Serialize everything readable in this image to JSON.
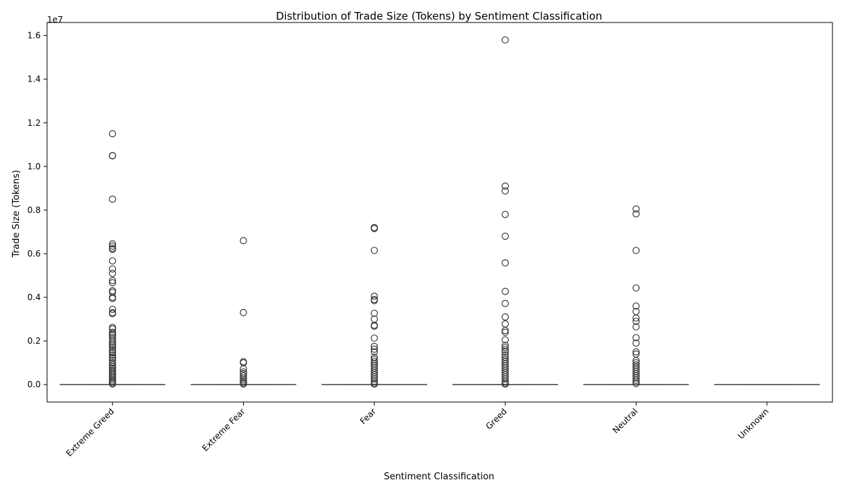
{
  "chart_data": {
    "type": "box",
    "title": "Distribution of Trade Size (Tokens) by Sentiment Classification",
    "xlabel": "Sentiment Classification",
    "ylabel": "Trade Size (Tokens)",
    "y_offset_label": "1e7",
    "ylim": [
      -0.08,
      1.66
    ],
    "y_ticks": [
      0.0,
      0.2,
      0.4,
      0.6,
      0.8,
      1.0,
      1.2,
      1.4,
      1.6
    ],
    "y_tick_labels": [
      "0.0",
      "0.2",
      "0.4",
      "0.6",
      "0.8",
      "1.0",
      "1.2",
      "1.4",
      "1.6"
    ],
    "grid": false,
    "categories": [
      "Extreme Greed",
      "Extreme Fear",
      "Fear",
      "Greed",
      "Neutral",
      "Unknown"
    ],
    "box_color": "#4a78a8",
    "boxes": [
      {
        "name": "Extreme Greed",
        "q1": 0.0,
        "median": 0.0,
        "q3": 0.0,
        "whisker_low": 0.0,
        "whisker_high": 0.0,
        "outliers": [
          1.15,
          1.05,
          1.049,
          0.85,
          0.645,
          0.635,
          0.625,
          0.62,
          0.567,
          0.53,
          0.51,
          0.477,
          0.467,
          0.43,
          0.423,
          0.4,
          0.395,
          0.345,
          0.33,
          0.325,
          0.262,
          0.255,
          0.24,
          0.232,
          0.225,
          0.215,
          0.205,
          0.195,
          0.185,
          0.178,
          0.17,
          0.16,
          0.152,
          0.145,
          0.135,
          0.125,
          0.12,
          0.11,
          0.1,
          0.09,
          0.082,
          0.075,
          0.067,
          0.06,
          0.052,
          0.045,
          0.038,
          0.03,
          0.022,
          0.015,
          0.008,
          0.003
        ]
      },
      {
        "name": "Extreme Fear",
        "q1": 0.0,
        "median": 0.0,
        "q3": 0.0,
        "whisker_low": 0.0,
        "whisker_high": 0.0,
        "outliers": [
          0.66,
          0.33,
          0.105,
          0.1,
          0.072,
          0.058,
          0.05,
          0.04,
          0.03,
          0.022,
          0.015,
          0.008,
          0.003
        ]
      },
      {
        "name": "Fear",
        "q1": 0.0,
        "median": 0.0,
        "q3": 0.0,
        "whisker_low": 0.0,
        "whisker_high": 0.0,
        "outliers": [
          0.72,
          0.715,
          0.615,
          0.405,
          0.39,
          0.385,
          0.327,
          0.3,
          0.272,
          0.268,
          0.213,
          0.175,
          0.162,
          0.15,
          0.125,
          0.115,
          0.105,
          0.095,
          0.085,
          0.075,
          0.065,
          0.055,
          0.045,
          0.035,
          0.025,
          0.015,
          0.007,
          0.002
        ]
      },
      {
        "name": "Greed",
        "q1": 0.0,
        "median": 0.0,
        "q3": 0.0,
        "whisker_low": 0.0,
        "whisker_high": 0.0,
        "outliers": [
          1.58,
          0.91,
          0.888,
          0.78,
          0.68,
          0.558,
          0.427,
          0.372,
          0.31,
          0.278,
          0.248,
          0.24,
          0.205,
          0.18,
          0.17,
          0.16,
          0.15,
          0.135,
          0.125,
          0.115,
          0.105,
          0.095,
          0.085,
          0.075,
          0.065,
          0.055,
          0.045,
          0.035,
          0.025,
          0.015,
          0.007,
          0.002
        ]
      },
      {
        "name": "Neutral",
        "q1": 0.0,
        "median": 0.0,
        "q3": 0.0,
        "whisker_low": 0.0,
        "whisker_high": 0.0,
        "outliers": [
          0.805,
          0.783,
          0.615,
          0.443,
          0.36,
          0.335,
          0.305,
          0.29,
          0.265,
          0.215,
          0.19,
          0.15,
          0.14,
          0.11,
          0.1,
          0.09,
          0.08,
          0.07,
          0.06,
          0.05,
          0.04,
          0.03,
          0.02,
          0.012,
          0.005
        ]
      },
      {
        "name": "Unknown",
        "q1": 0.0,
        "median": 0.0,
        "q3": 0.0,
        "whisker_low": 0.0,
        "whisker_high": 0.0,
        "outliers": []
      }
    ]
  }
}
